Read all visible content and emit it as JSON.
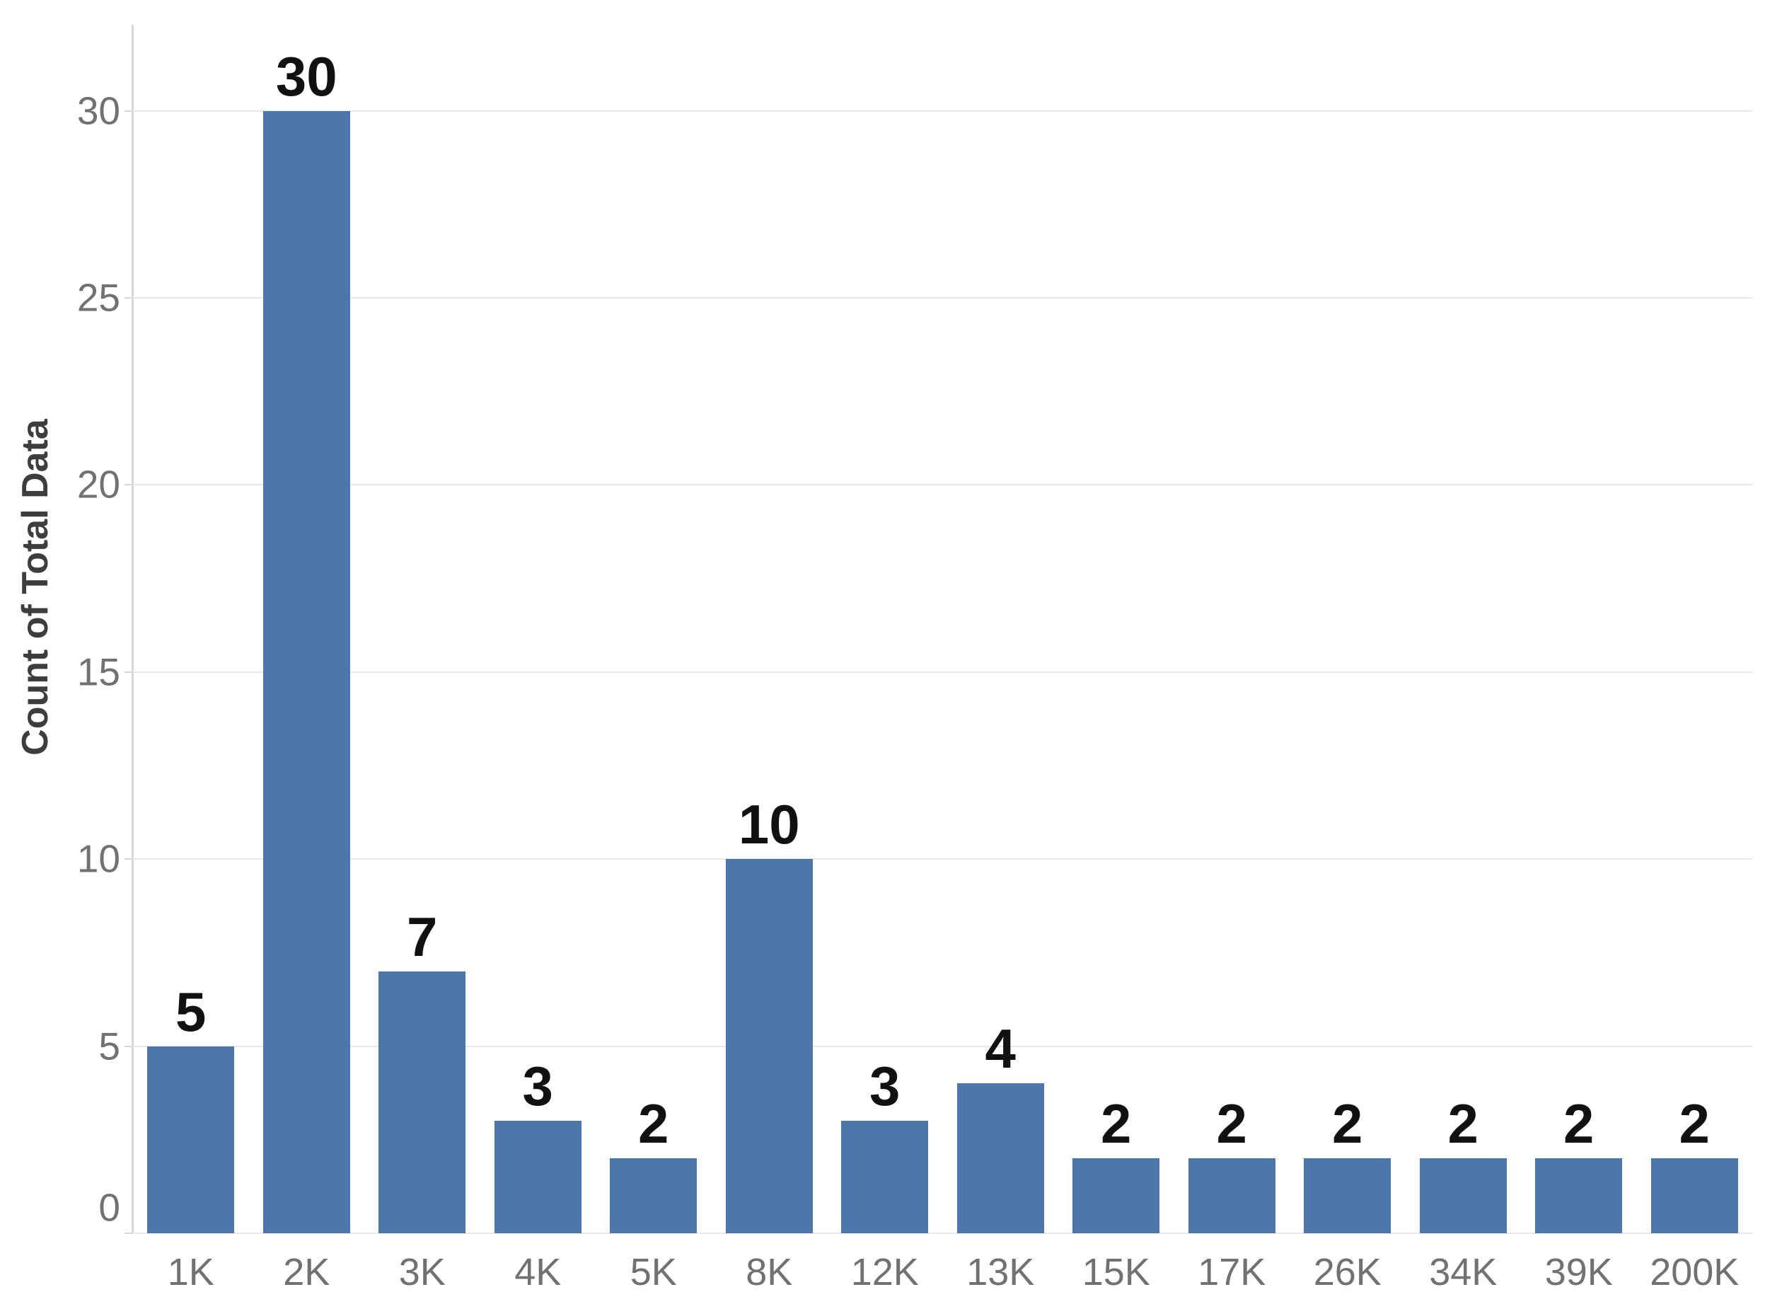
{
  "chart_data": {
    "type": "bar",
    "categories": [
      "1K",
      "2K",
      "3K",
      "4K",
      "5K",
      "8K",
      "12K",
      "13K",
      "15K",
      "17K",
      "26K",
      "34K",
      "39K",
      "200K"
    ],
    "values": [
      5,
      30,
      7,
      3,
      2,
      10,
      3,
      4,
      2,
      2,
      2,
      2,
      2,
      2
    ],
    "ylabel": "Count of Total Data",
    "yticks": [
      0,
      5,
      10,
      15,
      20,
      25,
      30
    ],
    "ylim": [
      0,
      32.3
    ],
    "grid": "horizontal",
    "legend": "none",
    "bar_value_labels_shown": true,
    "colors": {
      "bar": "#4d77aa",
      "grid_line": "#e8e8e8",
      "axis_line": "#d7d7d7",
      "tick_label": "#717171",
      "bar_value_label": "#111111",
      "axis_title": "#3d3d3d",
      "background": "#ffffff"
    }
  }
}
